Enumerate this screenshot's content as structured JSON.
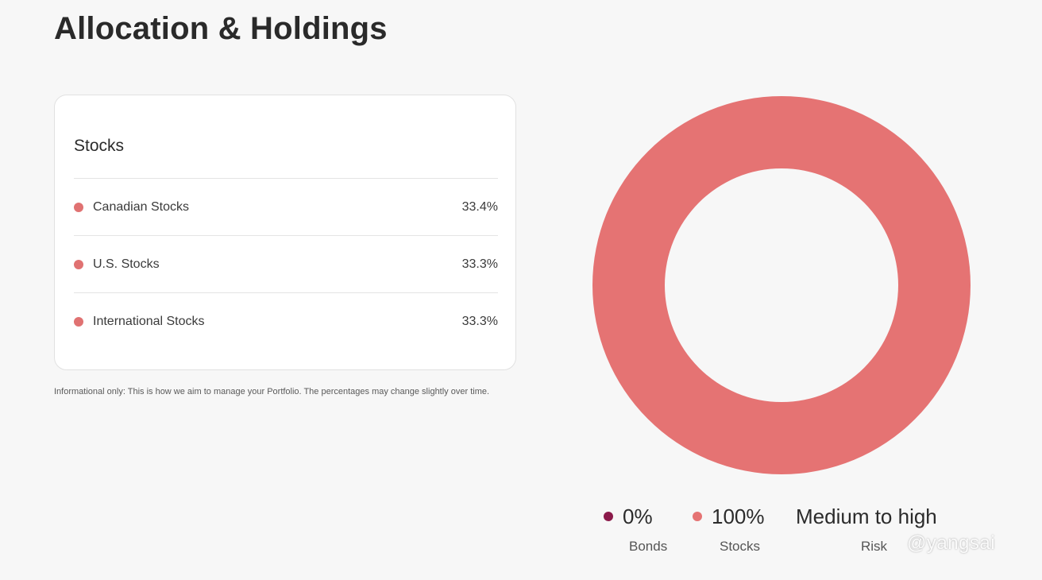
{
  "page": {
    "title": "Allocation & Holdings"
  },
  "holdings_card": {
    "heading": "Stocks",
    "rows": [
      {
        "label": "Canadian Stocks",
        "value": "33.4%",
        "color": "#e07272"
      },
      {
        "label": "U.S. Stocks",
        "value": "33.3%",
        "color": "#e07272"
      },
      {
        "label": "International Stocks",
        "value": "33.3%",
        "color": "#e07272"
      }
    ]
  },
  "note": "Informational only: This is how we aim to manage your Portfolio. The percentages may change slightly over time.",
  "chart_data": {
    "type": "pie",
    "categories": [
      "Bonds",
      "Stocks"
    ],
    "values": [
      0,
      100
    ],
    "colors": [
      "#8b1a4a",
      "#e57373"
    ]
  },
  "legend": {
    "bonds": {
      "value": "0%",
      "caption": "Bonds",
      "color": "#8b1a4a"
    },
    "stocks": {
      "value": "100%",
      "caption": "Stocks",
      "color": "#e57373"
    },
    "risk": {
      "value": "Medium to high",
      "caption": "Risk"
    }
  },
  "watermark": "@yangsai"
}
